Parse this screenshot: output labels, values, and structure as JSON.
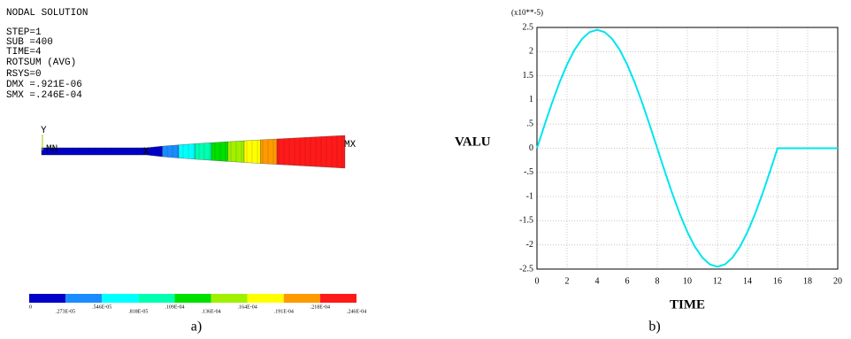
{
  "contour_plot": {
    "info": [
      "NODAL SOLUTION",
      "STEP=1",
      "SUB =400",
      "TIME=4",
      "ROTSUM   (AVG)",
      "RSYS=0",
      "DMX =.921E-06",
      "SMX =.246E-04"
    ],
    "axis_label": "Y",
    "min_label": "MN",
    "max_label": "MX",
    "node_label": "X",
    "legend_colors": [
      "#0000c8",
      "#1a8cff",
      "#00ffff",
      "#00ffb0",
      "#00e000",
      "#a0f000",
      "#ffff00",
      "#ff9a00",
      "#ff1a1a"
    ],
    "legend_labels": [
      "0",
      ".273E-05",
      ".546E-05",
      ".818E-05",
      ".109E-04",
      ".136E-04",
      ".164E-04",
      ".191E-04",
      ".218E-04",
      ".246E-04"
    ],
    "caption": "a)"
  },
  "chart_data": {
    "type": "line",
    "multiplier": "(x10**-5)",
    "y_label": "VALU",
    "x_label": "TIME",
    "caption": "b)",
    "x": [
      0,
      0.5,
      1,
      1.5,
      2,
      2.5,
      3,
      3.5,
      4,
      4.5,
      5,
      5.5,
      6,
      6.5,
      7,
      7.5,
      8,
      8.5,
      9,
      9.5,
      10,
      10.5,
      11,
      11.5,
      12,
      12.5,
      13,
      13.5,
      14,
      14.5,
      15,
      15.5,
      16,
      20
    ],
    "series": [
      {
        "color": "#00e5ee",
        "values": [
          0,
          0.478,
          0.938,
          1.361,
          1.732,
          2.037,
          2.264,
          2.403,
          2.45,
          2.403,
          2.264,
          2.037,
          1.732,
          1.361,
          0.938,
          0.478,
          0,
          -0.478,
          -0.938,
          -1.361,
          -1.732,
          -2.037,
          -2.264,
          -2.403,
          -2.45,
          -2.403,
          -2.264,
          -2.037,
          -1.732,
          -1.361,
          -0.938,
          -0.478,
          0,
          0
        ]
      }
    ],
    "xlim": [
      0,
      20
    ],
    "xticks": [
      0,
      2,
      4,
      6,
      8,
      10,
      12,
      14,
      16,
      18,
      20
    ],
    "ylim": [
      -2.5,
      2.5
    ],
    "yticks": [
      {
        "value": -2.5,
        "label": "-2.5"
      },
      -2,
      {
        "value": -1.5,
        "label": "-1.5"
      },
      -1,
      {
        "value": -0.5,
        "label": "-.5"
      },
      0,
      {
        "value": 0.5,
        "label": ".5"
      },
      1,
      {
        "value": 1.5,
        "label": "1.5"
      },
      2,
      {
        "value": 2.5,
        "label": "2.5"
      }
    ],
    "grid": true
  }
}
